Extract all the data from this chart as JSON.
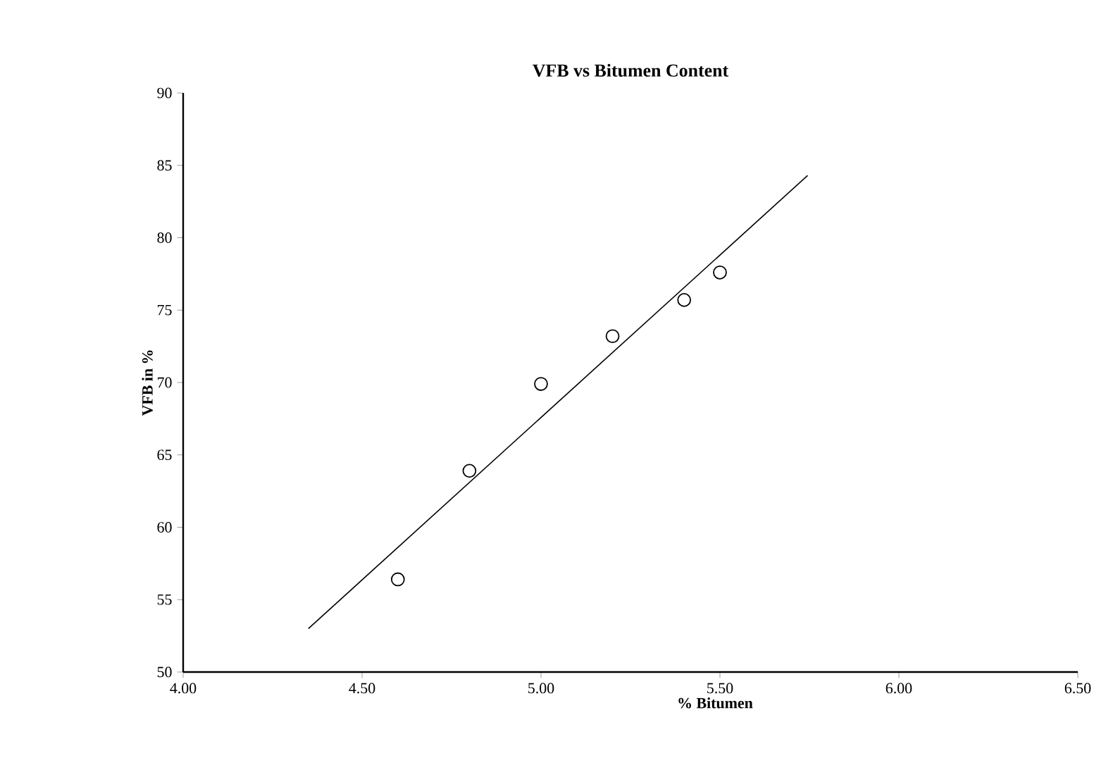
{
  "chart_data": {
    "type": "scatter",
    "title": "VFB vs Bitumen Content",
    "xlabel": "% Bitumen",
    "ylabel": "VFB in %",
    "xlim": [
      4.0,
      6.5
    ],
    "xticks": [
      {
        "value": 4.0,
        "label": "4.00"
      },
      {
        "value": 4.5,
        "label": "4.50"
      },
      {
        "value": 5.0,
        "label": "5.00"
      },
      {
        "value": 5.5,
        "label": "5.50"
      },
      {
        "value": 6.0,
        "label": "6.00"
      },
      {
        "value": 6.5,
        "label": "6.50"
      }
    ],
    "ylim": [
      50,
      90
    ],
    "yticks": [
      50,
      55,
      60,
      65,
      70,
      75,
      80,
      85,
      90
    ],
    "series": [
      {
        "marker": "circle",
        "color": "#000000",
        "x": [
          4.6,
          4.8,
          5.0,
          5.2,
          5.4,
          5.5
        ],
        "values": [
          56.4,
          63.9,
          69.9,
          73.2,
          75.7,
          77.6
        ]
      },
      {
        "type": "line",
        "marker": "none",
        "line_style": "solid",
        "color": "#000000",
        "x": [
          4.35,
          5.745
        ],
        "values": [
          53.0,
          84.3
        ]
      }
    ]
  }
}
